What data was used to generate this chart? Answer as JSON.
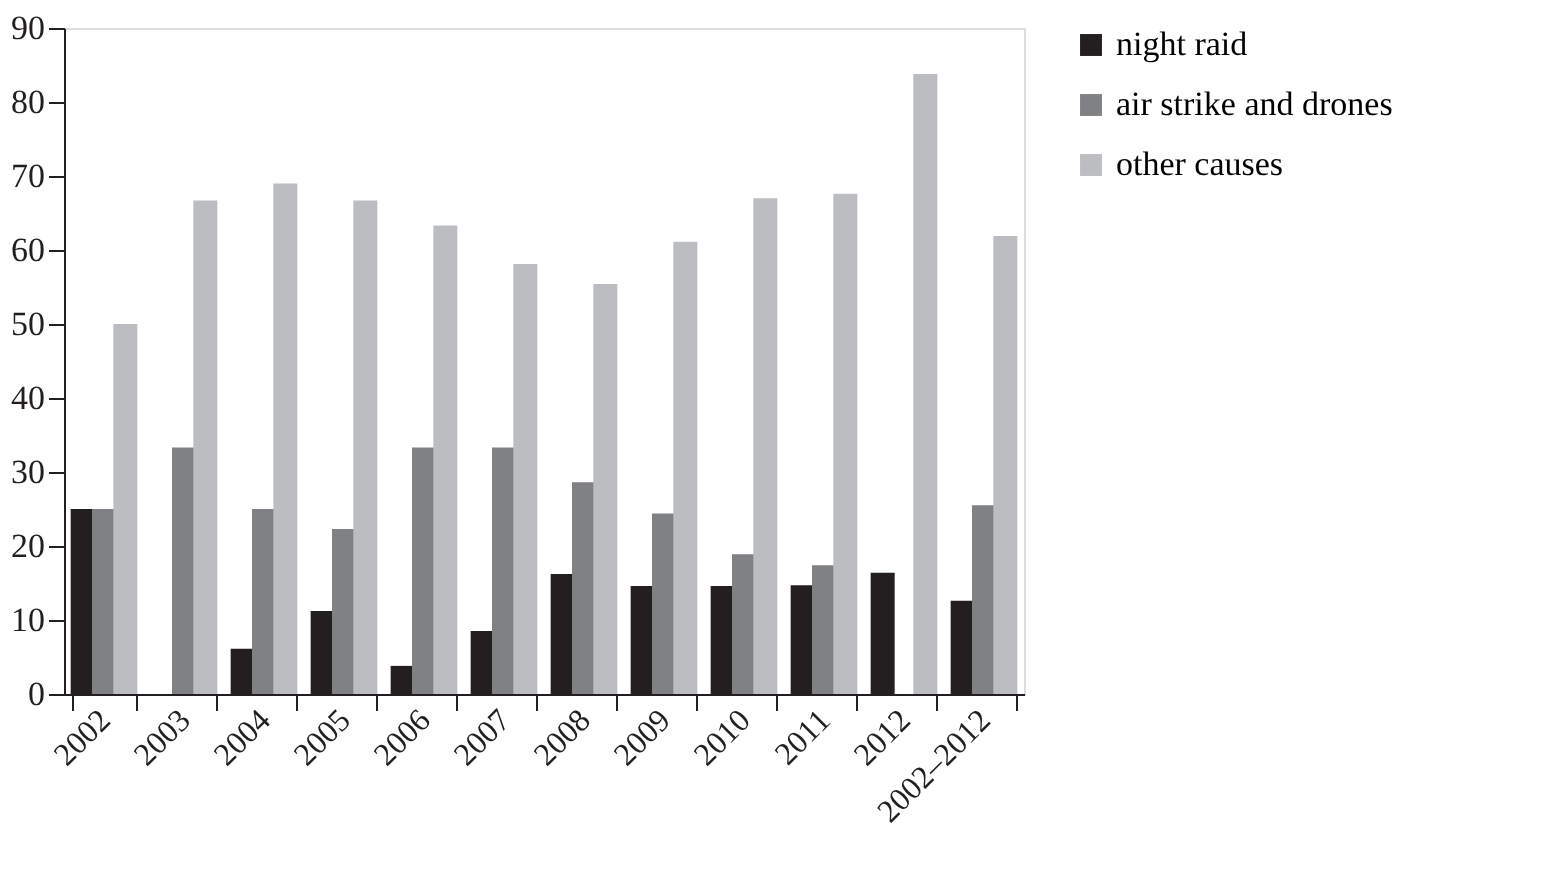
{
  "chart_data": {
    "type": "bar",
    "categories": [
      "2002",
      "2003",
      "2004",
      "2005",
      "2006",
      "2007",
      "2008",
      "2009",
      "2010",
      "2011",
      "2012",
      "2002–2012"
    ],
    "series": [
      {
        "name": "night raid",
        "color": "#231f20",
        "values": [
          25,
          null,
          6.1,
          11.2,
          3.8,
          8.5,
          16.2,
          14.6,
          14.6,
          14.7,
          16.4,
          12.6
        ]
      },
      {
        "name": "air strike and drones",
        "color": "#808184",
        "values": [
          25,
          33.3,
          25,
          22.3,
          33.3,
          33.3,
          28.6,
          24.4,
          18.9,
          17.4,
          null,
          25.5
        ]
      },
      {
        "name": "other causes",
        "color": "#bcbdc0",
        "values": [
          50,
          66.7,
          69,
          66.7,
          63.3,
          58.1,
          55.4,
          61.1,
          67,
          67.6,
          83.8,
          61.9
        ]
      }
    ],
    "ylim": [
      0,
      90
    ],
    "yticks": [
      0,
      10,
      20,
      30,
      40,
      50,
      60,
      70,
      80,
      90
    ],
    "grid": false,
    "legend": "right"
  }
}
